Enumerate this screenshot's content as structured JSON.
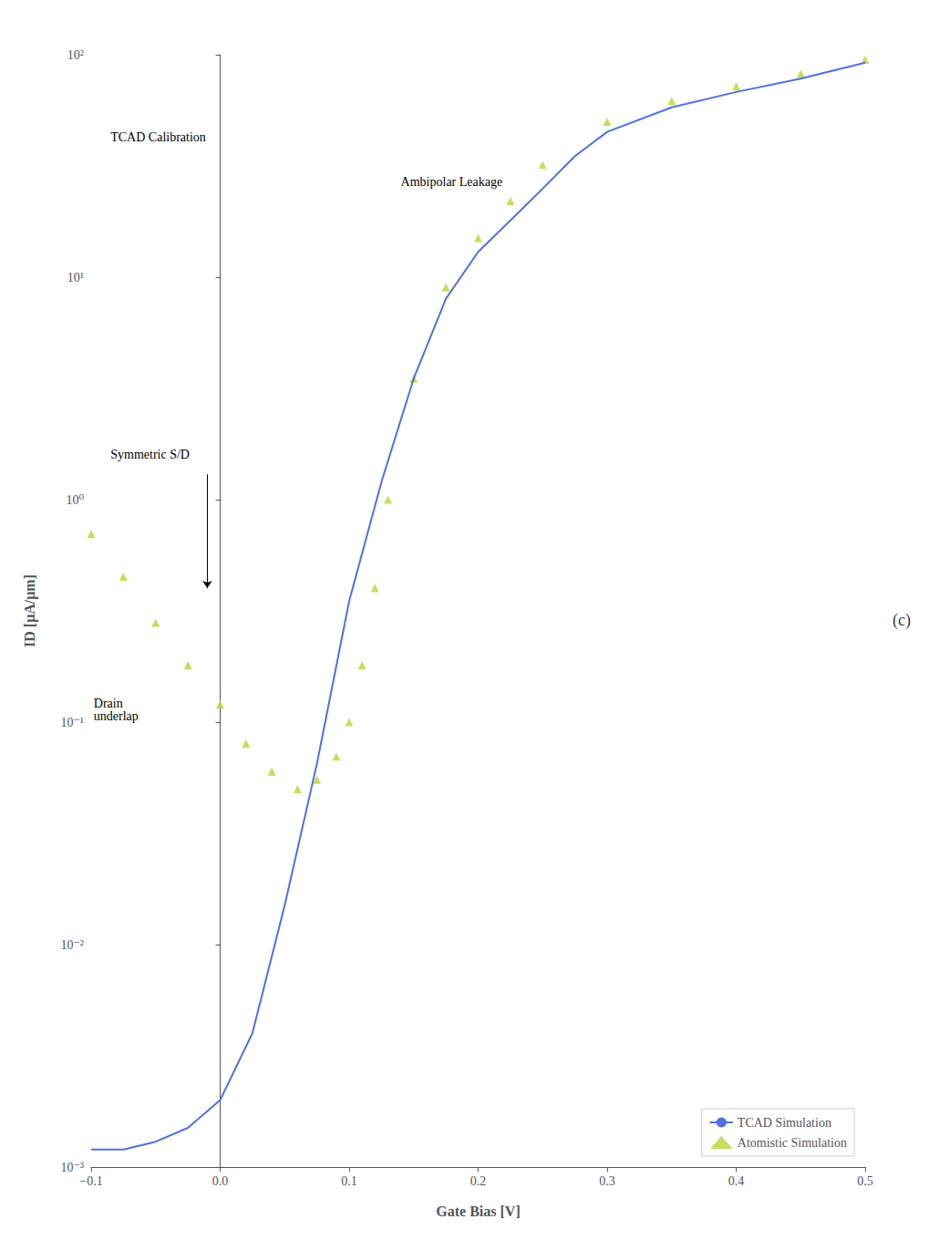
{
  "chart_data": {
    "type": "line",
    "title": "(c)",
    "xlabel": "Gate Bias [V]",
    "ylabel": "ID [μA/μm]",
    "log": "y",
    "grid": false,
    "legend": "lower right",
    "xlim": [
      -0.1,
      0.5
    ],
    "ylim": [
      0.001,
      100
    ],
    "xticks": [
      {
        "value": -0.1,
        "label": "−0.1"
      },
      {
        "value": 0.0,
        "label": "0.0"
      },
      0.1,
      0.2,
      0.3,
      0.4,
      0.5
    ],
    "yticks": [
      {
        "value": 0.001,
        "label": "10⁻³"
      },
      {
        "value": 0.01,
        "label": "10⁻²"
      },
      {
        "value": 0.1,
        "label": "10⁻¹"
      },
      {
        "value": 1,
        "label": "10⁰"
      },
      {
        "value": 10,
        "label": "10¹"
      },
      {
        "value": 100,
        "label": "10²"
      }
    ],
    "series": [
      {
        "name": "TCAD Simulation",
        "type": "line",
        "line_style": "solid",
        "marker": "none",
        "x": [
          -0.1,
          -0.075,
          -0.05,
          -0.025,
          0.0,
          0.025,
          0.05,
          0.075,
          0.1,
          0.125,
          0.15,
          0.175,
          0.2,
          0.225,
          0.25,
          0.275,
          0.3,
          0.35,
          0.4,
          0.45,
          0.5
        ],
        "values": [
          0.0012,
          0.0012,
          0.0013,
          0.0015,
          0.002,
          0.004,
          0.015,
          0.065,
          0.35,
          1.2,
          3.5,
          8.0,
          13.0,
          18.0,
          25.0,
          35.0,
          45.0,
          58.0,
          68.0,
          78.0,
          92.0
        ]
      },
      {
        "name": "Atomistic Simulation",
        "type": "scatter",
        "marker": "triangle",
        "x": [
          -0.1,
          -0.075,
          -0.05,
          -0.025,
          0.0,
          0.02,
          0.04,
          0.06,
          0.075,
          0.09,
          0.1,
          0.11,
          0.12,
          0.13,
          0.15,
          0.175,
          0.2,
          0.225,
          0.25,
          0.3,
          0.35,
          0.4,
          0.45,
          0.5
        ],
        "values": [
          0.7,
          0.45,
          0.28,
          0.18,
          0.12,
          0.08,
          0.06,
          0.05,
          0.055,
          0.07,
          0.1,
          0.18,
          0.4,
          1.0,
          3.5,
          9.0,
          15.0,
          22.0,
          32.0,
          50.0,
          62.0,
          72.0,
          82.0,
          95.0
        ]
      }
    ],
    "annotations": [
      {
        "text": "TCAD Calibration",
        "x": -0.085,
        "y": 40
      },
      {
        "text": "Symmetric S/D",
        "x": -0.085,
        "y": 1.5,
        "arrow_from": [
          -0.01,
          1.3
        ],
        "arrow_to": [
          -0.01,
          0.4
        ]
      },
      {
        "text": "Drain\nunderlap",
        "x": -0.098,
        "y": 0.13
      },
      {
        "text": "Ambipolar Leakage",
        "x": 0.14,
        "y": 25
      }
    ]
  }
}
